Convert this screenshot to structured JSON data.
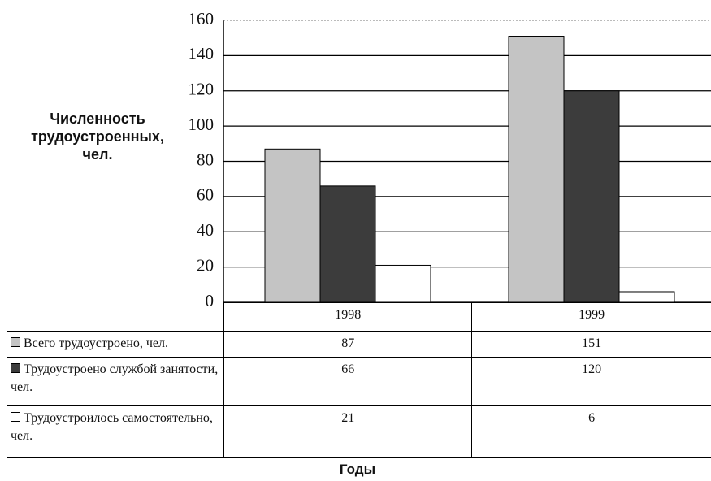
{
  "chart_data": {
    "type": "bar",
    "y_label": "Численность трудоустроенных, чел.",
    "x_label": "Годы",
    "categories": [
      "1998",
      "1999"
    ],
    "series": [
      {
        "name": "Всего трудоустроено, чел.",
        "color": "#c4c4c4",
        "values": [
          87,
          151
        ]
      },
      {
        "name": "Трудоустроено службой занятости, чел.",
        "color": "#3c3c3c",
        "values": [
          66,
          120
        ]
      },
      {
        "name": "Трудоустроилось самостоятельно, чел.",
        "color": "#ffffff",
        "values": [
          21,
          6
        ]
      }
    ],
    "ylim": [
      0,
      160
    ],
    "yticks": [
      0,
      20,
      40,
      60,
      80,
      100,
      120,
      140,
      160
    ],
    "grid": true
  }
}
